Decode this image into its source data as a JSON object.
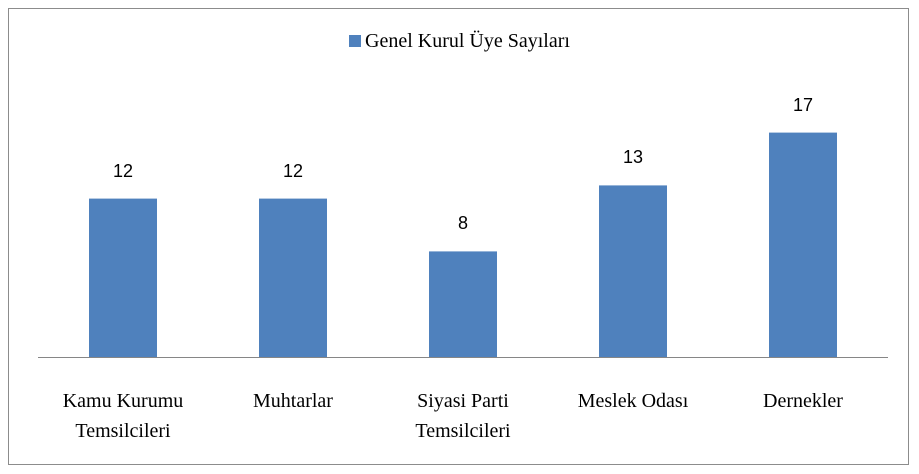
{
  "chart_data": {
    "type": "bar",
    "categories": [
      "Kamu Kurumu Temsilcileri",
      "Muhtarlar",
      "Siyasi Parti Temsilcileri",
      "Meslek Odası",
      "Dernekler"
    ],
    "series": [
      {
        "name": "Genel Kurul Üye Sayıları",
        "color": "#4f81bd",
        "values": [
          12,
          12,
          8,
          13,
          17
        ]
      }
    ],
    "legend": "top"
  }
}
